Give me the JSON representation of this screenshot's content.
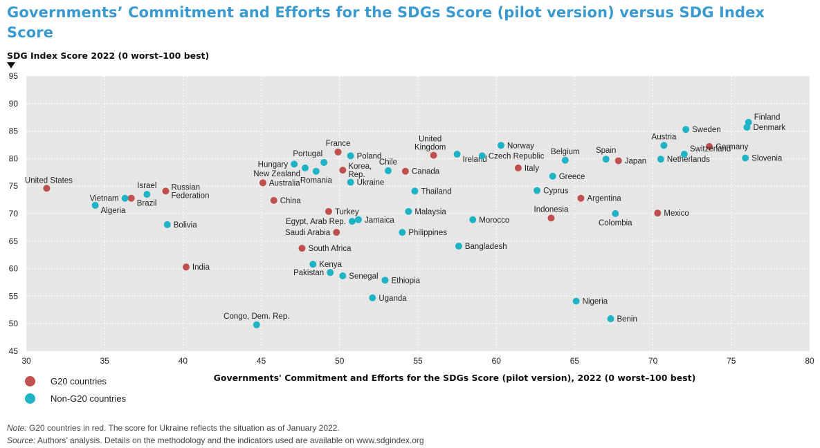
{
  "title": "Governments’ Commitment and Efforts for the SDGs Score (pilot version) versus SDG Index Score",
  "chart_data": {
    "type": "scatter",
    "ylabel": "SDG Index Score 2022 (0 worst–100 best)",
    "xlabel": "Governments' Commitment and Efforts for the SDGs Score (pilot version), 2022 (0 worst–100 best)",
    "xlim": [
      30,
      80
    ],
    "ylim": [
      45,
      95
    ],
    "xticks": [
      30,
      35,
      40,
      45,
      50,
      55,
      60,
      65,
      70,
      75,
      80
    ],
    "yticks": [
      45,
      50,
      55,
      60,
      65,
      70,
      75,
      80,
      85,
      90,
      95
    ],
    "grid": true,
    "legend_position": "bottom-left",
    "colors": {
      "g20": "#c0504d",
      "non_g20": "#1fb3c6",
      "plot_bg": "#e6e6e6"
    },
    "series": [
      {
        "name": "G20 countries",
        "points": [
          {
            "label": "United States",
            "x": 31.3,
            "y": 74.6,
            "anchor": "above-left"
          },
          {
            "label": "Brazil",
            "x": 36.7,
            "y": 72.8,
            "anchor": "right-below"
          },
          {
            "label": "Russian Federation",
            "x": 38.9,
            "y": 74.1,
            "anchor": "right-two-line"
          },
          {
            "label": "India",
            "x": 40.2,
            "y": 60.3,
            "anchor": "right"
          },
          {
            "label": "China",
            "x": 45.8,
            "y": 72.4,
            "anchor": "right"
          },
          {
            "label": "Australia",
            "x": 45.1,
            "y": 75.6,
            "anchor": "right"
          },
          {
            "label": "France",
            "x": 49.9,
            "y": 81.2,
            "anchor": "above"
          },
          {
            "label": "Korea, Rep.",
            "x": 50.2,
            "y": 77.9,
            "anchor": "right-two-line"
          },
          {
            "label": "Turkey",
            "x": 49.3,
            "y": 70.4,
            "anchor": "right"
          },
          {
            "label": "Saudi Arabia",
            "x": 49.8,
            "y": 66.6,
            "anchor": "left"
          },
          {
            "label": "South Africa",
            "x": 47.6,
            "y": 63.7,
            "anchor": "right"
          },
          {
            "label": "Canada",
            "x": 54.2,
            "y": 77.7,
            "anchor": "right"
          },
          {
            "label": "United Kingdom",
            "x": 56.0,
            "y": 80.6,
            "anchor": "above-two-line"
          },
          {
            "label": "Italy",
            "x": 61.4,
            "y": 78.3,
            "anchor": "right"
          },
          {
            "label": "Indonesia",
            "x": 63.5,
            "y": 69.2,
            "anchor": "above"
          },
          {
            "label": "Argentina",
            "x": 65.4,
            "y": 72.8,
            "anchor": "right"
          },
          {
            "label": "Japan",
            "x": 67.8,
            "y": 79.6,
            "anchor": "right"
          },
          {
            "label": "Mexico",
            "x": 70.3,
            "y": 70.1,
            "anchor": "right"
          },
          {
            "label": "Germany",
            "x": 73.6,
            "y": 82.2,
            "anchor": "right"
          }
        ]
      },
      {
        "name": "Non-G20 countries",
        "points": [
          {
            "label": "Algeria",
            "x": 34.4,
            "y": 71.5,
            "anchor": "right-below"
          },
          {
            "label": "Vietnam",
            "x": 36.3,
            "y": 72.8,
            "anchor": "left"
          },
          {
            "label": "Israel",
            "x": 37.7,
            "y": 73.5,
            "anchor": "above"
          },
          {
            "label": "Bolivia",
            "x": 39.0,
            "y": 68.0,
            "anchor": "right"
          },
          {
            "label": "Hungary",
            "x": 47.1,
            "y": 79.0,
            "anchor": "left"
          },
          {
            "label": "New Zealand",
            "x": 47.8,
            "y": 78.3,
            "anchor": "left-below"
          },
          {
            "label": "Portugal",
            "x": 49.0,
            "y": 79.3,
            "anchor": "left-above"
          },
          {
            "label": "Romania",
            "x": 48.5,
            "y": 77.7,
            "anchor": "below"
          },
          {
            "label": "Poland",
            "x": 50.7,
            "y": 80.5,
            "anchor": "right"
          },
          {
            "label": "Ukraine",
            "x": 50.7,
            "y": 75.7,
            "anchor": "right"
          },
          {
            "label": "Chile",
            "x": 53.1,
            "y": 77.8,
            "anchor": "above"
          },
          {
            "label": "Thailand",
            "x": 54.8,
            "y": 74.1,
            "anchor": "right"
          },
          {
            "label": "Malaysia",
            "x": 54.4,
            "y": 70.4,
            "anchor": "right"
          },
          {
            "label": "Egypt, Arab Rep.",
            "x": 50.8,
            "y": 68.6,
            "anchor": "left"
          },
          {
            "label": "Jamaica",
            "x": 51.2,
            "y": 68.9,
            "anchor": "right"
          },
          {
            "label": "Philippines",
            "x": 54.0,
            "y": 66.6,
            "anchor": "right"
          },
          {
            "label": "Kenya",
            "x": 48.3,
            "y": 60.8,
            "anchor": "right"
          },
          {
            "label": "Pakistan",
            "x": 49.4,
            "y": 59.3,
            "anchor": "left"
          },
          {
            "label": "Senegal",
            "x": 50.2,
            "y": 58.7,
            "anchor": "right"
          },
          {
            "label": "Ethiopia",
            "x": 52.9,
            "y": 57.9,
            "anchor": "right"
          },
          {
            "label": "Uganda",
            "x": 52.1,
            "y": 54.7,
            "anchor": "right"
          },
          {
            "label": "Congo, Dem. Rep.",
            "x": 44.7,
            "y": 49.8,
            "anchor": "above"
          },
          {
            "label": "Ireland",
            "x": 57.5,
            "y": 80.8,
            "anchor": "right-below"
          },
          {
            "label": "Czech Republic",
            "x": 59.1,
            "y": 80.5,
            "anchor": "right"
          },
          {
            "label": "Norway",
            "x": 60.3,
            "y": 82.4,
            "anchor": "right"
          },
          {
            "label": "Bangladesh",
            "x": 57.6,
            "y": 64.1,
            "anchor": "right"
          },
          {
            "label": "Morocco",
            "x": 58.5,
            "y": 68.9,
            "anchor": "right"
          },
          {
            "label": "Cyprus",
            "x": 62.6,
            "y": 74.2,
            "anchor": "right"
          },
          {
            "label": "Greece",
            "x": 63.6,
            "y": 76.8,
            "anchor": "right"
          },
          {
            "label": "Belgium",
            "x": 64.4,
            "y": 79.7,
            "anchor": "above"
          },
          {
            "label": "Spain",
            "x": 67.0,
            "y": 79.9,
            "anchor": "above"
          },
          {
            "label": "Nigeria",
            "x": 65.1,
            "y": 54.1,
            "anchor": "right"
          },
          {
            "label": "Colombia",
            "x": 67.6,
            "y": 70.0,
            "anchor": "below"
          },
          {
            "label": "Benin",
            "x": 67.3,
            "y": 50.9,
            "anchor": "right"
          },
          {
            "label": "Austria",
            "x": 70.7,
            "y": 82.4,
            "anchor": "above"
          },
          {
            "label": "Netherlands",
            "x": 70.5,
            "y": 79.9,
            "anchor": "right"
          },
          {
            "label": "Sweden",
            "x": 72.1,
            "y": 85.3,
            "anchor": "right"
          },
          {
            "label": "Switzerland",
            "x": 72.0,
            "y": 80.8,
            "anchor": "right-above"
          },
          {
            "label": "Slovenia",
            "x": 75.9,
            "y": 80.1,
            "anchor": "right"
          },
          {
            "label": "Finland",
            "x": 76.1,
            "y": 86.6,
            "anchor": "right-above"
          },
          {
            "label": "Denmark",
            "x": 76.0,
            "y": 85.7,
            "anchor": "right"
          }
        ]
      }
    ]
  },
  "legend": [
    {
      "label": "G20 countries",
      "color": "#c0504d"
    },
    {
      "label": "Non-G20 countries",
      "color": "#1fb3c6"
    }
  ],
  "note": {
    "prefix": "Note:",
    "text": " G20 countries in red. The score for Ukraine reflects the situation as of January 2022."
  },
  "source": {
    "prefix": "Source:",
    "text": " Authors’ analysis. Details on the methodology and the indicators used are available on www.sdgindex.org"
  }
}
